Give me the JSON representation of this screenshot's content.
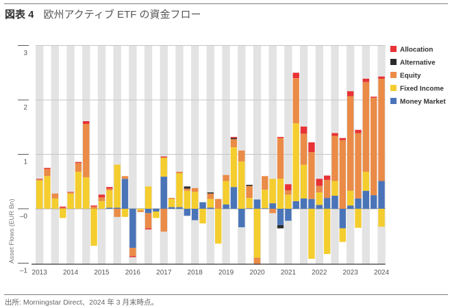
{
  "header": {
    "figure_label": "図表 4",
    "title": "欧州アクティブ ETF の資金フロー"
  },
  "footer": {
    "source": "出所: Morningstar Direct、2024 年 3 月末時点。"
  },
  "chart_data": {
    "type": "bar",
    "stacked": true,
    "title": "欧州アクティブ ETF の資金フロー",
    "xlabel": "",
    "ylabel": "Asset Flows (EUR Bn)",
    "ylim": [
      -1,
      3
    ],
    "yticks": [
      3,
      2,
      1,
      0,
      -1
    ],
    "ytick_labels": [
      "3",
      "2",
      "1",
      "–0",
      "–1"
    ],
    "xtick_labels": [
      "2013",
      "2014",
      "2015",
      "2016",
      "2017",
      "2018",
      "2019",
      "2020",
      "2021",
      "2022",
      "2023",
      "2024"
    ],
    "grid": "horizontal",
    "legend_position": "top-right",
    "categories": [
      "2013Q1",
      "2013Q2",
      "2013Q3",
      "2013Q4",
      "2014Q1",
      "2014Q2",
      "2014Q3",
      "2014Q4",
      "2015Q1",
      "2015Q2",
      "2015Q3",
      "2015Q4",
      "2016Q1",
      "2016Q2",
      "2016Q3",
      "2016Q4",
      "2017Q1",
      "2017Q2",
      "2017Q3",
      "2017Q4",
      "2018Q1",
      "2018Q2",
      "2018Q3",
      "2018Q4",
      "2019Q1",
      "2019Q2",
      "2019Q3",
      "2019Q4",
      "2020Q1",
      "2020Q2",
      "2020Q3",
      "2020Q4",
      "2021Q1",
      "2021Q2",
      "2021Q3",
      "2021Q4",
      "2022Q1",
      "2022Q2",
      "2022Q3",
      "2022Q4",
      "2023Q1",
      "2023Q2",
      "2023Q3",
      "2023Q4",
      "2024Q1"
    ],
    "series": [
      {
        "name": "Money Market",
        "color": "#4a74b8",
        "values": [
          0,
          0,
          0,
          0,
          0,
          0,
          0,
          0,
          0,
          0.02,
          0.02,
          0.55,
          -0.72,
          0,
          -0.08,
          -0.05,
          0.59,
          0.03,
          0.03,
          -0.13,
          -0.21,
          0.12,
          0.02,
          0,
          0.08,
          0.4,
          -0.34,
          0.01,
          0.17,
          0.01,
          0.1,
          -0.3,
          -0.22,
          0.14,
          0.19,
          0.18,
          0.07,
          0.2,
          0.24,
          -0.36,
          0.06,
          0.19,
          0.33,
          0.25,
          0.51
        ]
      },
      {
        "name": "Fixed Income",
        "color": "#f4cd2e",
        "values": [
          0.52,
          0.6,
          0.19,
          -0.17,
          0.28,
          0.68,
          0.58,
          -0.68,
          0.14,
          0.32,
          0.79,
          -0.15,
          0,
          -0.03,
          0.41,
          -0.12,
          0.35,
          0.15,
          0.62,
          0.33,
          0.31,
          -0.27,
          0.16,
          -0.64,
          0.43,
          0.73,
          0.87,
          0.19,
          -0.9,
          0.34,
          0.45,
          0.55,
          0.26,
          1.43,
          0.62,
          -0.92,
          0.23,
          -0.83,
          0.27,
          -0.25,
          0.27,
          -0.35,
          0.35,
          0,
          -0.33
        ]
      },
      {
        "name": "Equity",
        "color": "#ea8b47",
        "values": [
          0.02,
          0.13,
          0.09,
          0.02,
          0.02,
          0.16,
          0.98,
          0.04,
          0.07,
          0.03,
          -0.15,
          0.05,
          -0.15,
          -0.03,
          -0.28,
          0,
          -0.42,
          0.02,
          0.03,
          0.04,
          0.07,
          0,
          0.1,
          0.18,
          0.11,
          0.15,
          0.2,
          0.22,
          -0.13,
          0.25,
          -0.08,
          0.75,
          0.08,
          0.83,
          0.57,
          0.86,
          0.12,
          0.33,
          0.83,
          1.26,
          1.74,
          1.2,
          1.65,
          1.79,
          1.88
        ]
      },
      {
        "name": "Alternative",
        "color": "#2b2b2b",
        "values": [
          0,
          0,
          0,
          0,
          0,
          0,
          0,
          0,
          0,
          0,
          0,
          0,
          0,
          0,
          0,
          0,
          0,
          0,
          0,
          0.04,
          0,
          0,
          0.02,
          0,
          0,
          0.02,
          0,
          0.02,
          0,
          0,
          0,
          -0.06,
          0,
          0,
          0,
          0,
          0,
          0,
          0,
          0,
          0,
          0,
          0,
          0,
          0
        ]
      },
      {
        "name": "Allocation",
        "color": "#e83236",
        "values": [
          0.01,
          0.02,
          0,
          0.02,
          0.01,
          0.02,
          0.05,
          0.02,
          0.05,
          0.03,
          0,
          0,
          -0.02,
          0,
          -0.02,
          0,
          0.02,
          0,
          0,
          0,
          0,
          0,
          0,
          0,
          0,
          0.02,
          0,
          0,
          0,
          0,
          0,
          0.02,
          0.11,
          0.1,
          0.13,
          0.18,
          0.13,
          0.08,
          0.05,
          0.04,
          0.09,
          0.06,
          0.06,
          0.02,
          0.04
        ]
      }
    ],
    "legend_order": [
      "Allocation",
      "Alternative",
      "Equity",
      "Fixed Income",
      "Money Market"
    ]
  }
}
